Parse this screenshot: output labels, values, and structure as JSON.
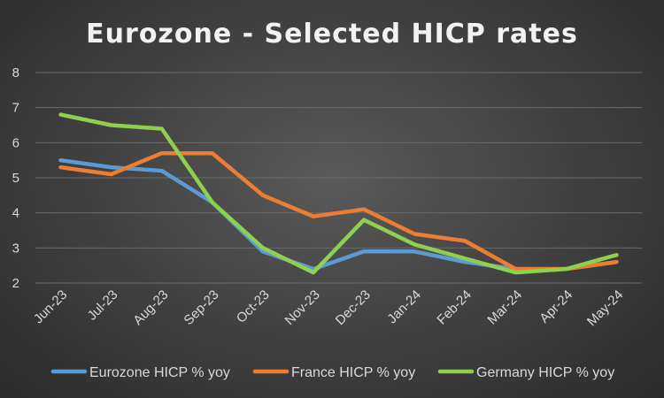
{
  "chart_data": {
    "type": "line",
    "title": "Eurozone - Selected HICP rates",
    "categories": [
      "Jun-23",
      "Jul-23",
      "Aug-23",
      "Sep-23",
      "Oct-23",
      "Nov-23",
      "Dec-23",
      "Jan-24",
      "Feb-24",
      "Mar-24",
      "Apr-24",
      "May-24"
    ],
    "ylim": [
      2,
      8
    ],
    "yticks": [
      "2",
      "3",
      "4",
      "5",
      "6",
      "7",
      "8"
    ],
    "grid": true,
    "legend_position": "bottom",
    "series": [
      {
        "name": "Eurozone HICP % yoy",
        "color": "#5b9bd5",
        "values": [
          5.5,
          5.3,
          5.2,
          4.3,
          2.9,
          2.4,
          2.9,
          2.9,
          2.6,
          2.4,
          2.4,
          2.6
        ]
      },
      {
        "name": "France HICP % yoy",
        "color": "#ed7d31",
        "values": [
          5.3,
          5.1,
          5.7,
          5.7,
          4.5,
          3.9,
          4.1,
          3.4,
          3.2,
          2.4,
          2.4,
          2.6
        ]
      },
      {
        "name": "Germany HICP % yoy",
        "color": "#8fd14f",
        "values": [
          6.8,
          6.5,
          6.4,
          4.3,
          3.0,
          2.3,
          3.8,
          3.1,
          2.7,
          2.3,
          2.4,
          2.8
        ]
      }
    ]
  }
}
